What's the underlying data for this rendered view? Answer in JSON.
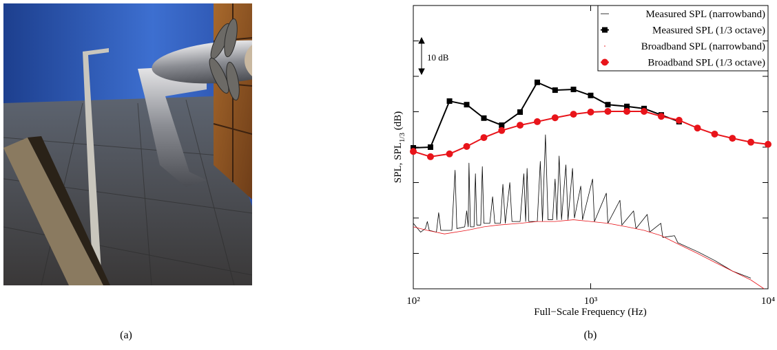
{
  "captions": [
    "(a)",
    "(b)"
  ],
  "chart_data": {
    "type": "line",
    "xlabel": "Full−Scale Frequency (Hz)",
    "ylabel": "SPL, SPL",
    "ylabel_sub": "1/3",
    "ylabel_suffix": " (dB)",
    "annotation": "10 dB",
    "log_x": true,
    "xlim": [
      100,
      10000
    ],
    "xticks": [
      {
        "value": 100,
        "label": "10²"
      },
      {
        "value": 1000,
        "label": "10³"
      },
      {
        "value": 10000,
        "label": "10⁴"
      }
    ],
    "ylim": [
      0,
      80
    ],
    "yticks": [
      10,
      20,
      30,
      40,
      50,
      60,
      70
    ],
    "show_ytick_labels": false,
    "grid": false,
    "legend": "upper right",
    "series": [
      {
        "name": "Measured SPL (narrowband)",
        "color": "#000000",
        "marker": "none",
        "line_width": 0.8,
        "x": [
          100,
          110,
          117,
          120,
          123,
          135,
          139,
          143,
          165,
          172,
          176,
          195,
          200,
          204,
          206,
          210,
          220,
          224,
          228,
          240,
          245,
          250,
          270,
          280,
          288,
          310,
          320,
          330,
          350,
          360,
          400,
          420,
          430,
          438,
          448,
          500,
          520,
          535,
          556,
          575,
          610,
          630,
          645,
          664,
          685,
          725,
          745,
          790,
          810,
          879,
          900,
          1025,
          1050,
          1225,
          1250,
          1462,
          1500,
          1745,
          1800,
          2083,
          2150,
          2487,
          2550,
          2968,
          3100,
          4000,
          5000,
          6300,
          8000
        ],
        "values": [
          18.5,
          16,
          17,
          19,
          16.5,
          16,
          21.5,
          16.5,
          16.5,
          33.5,
          17,
          17.5,
          22,
          17.5,
          35.5,
          17.5,
          17.5,
          32.5,
          18,
          18,
          34.5,
          18.5,
          18.5,
          26,
          18.5,
          18.5,
          29.5,
          18.5,
          30,
          19,
          19,
          32.5,
          19,
          34,
          19,
          19,
          36,
          19,
          43.5,
          19.5,
          19.5,
          31,
          19.5,
          37.5,
          19.5,
          35,
          19.5,
          34,
          20,
          29,
          19.5,
          31,
          19,
          27,
          18.5,
          25,
          18,
          22,
          17,
          21,
          16,
          18.5,
          14.5,
          15,
          13,
          10.5,
          8,
          5,
          3
        ]
      },
      {
        "name": "Measured SPL (1/3 octave)",
        "color": "#000000",
        "marker": "square",
        "line_width": 2,
        "x": [
          100,
          125,
          160,
          200,
          250,
          315,
          400,
          500,
          630,
          800,
          1000,
          1250,
          1600,
          2000,
          2500,
          3150
        ],
        "values": [
          39.8,
          40,
          53,
          52,
          48.2,
          46.2,
          49.9,
          58.3,
          56.1,
          56.3,
          54.6,
          52,
          51.5,
          50.9,
          49.1,
          47.2
        ]
      },
      {
        "name": "Broadband SPL (narrowband)",
        "color": "#e8141a",
        "marker": "dot",
        "line_width": 0.8,
        "x": [
          100,
          120,
          150,
          200,
          250,
          300,
          400,
          500,
          630,
          800,
          1000,
          1250,
          1600,
          2000,
          2500,
          3150,
          4000,
          5000,
          6300,
          8000,
          9500
        ],
        "values": [
          17.5,
          16.5,
          15.5,
          16.5,
          17.5,
          18,
          18.5,
          19,
          19,
          19.5,
          19,
          18.5,
          17.5,
          16.5,
          15,
          12.5,
          10,
          7.5,
          5,
          2.5,
          0
        ]
      },
      {
        "name": "Broadband SPL (1/3 octave)",
        "color": "#e8141a",
        "marker": "circle",
        "line_width": 2,
        "x": [
          100,
          125,
          160,
          200,
          250,
          315,
          400,
          500,
          630,
          800,
          1000,
          1250,
          1600,
          2000,
          2500,
          3150,
          4000,
          5000,
          6300,
          8000,
          10000
        ],
        "values": [
          38.8,
          37.3,
          38.1,
          40.2,
          42.7,
          44.7,
          46.2,
          47.2,
          48.3,
          49.3,
          49.9,
          50.1,
          50.1,
          50.1,
          48.7,
          47.6,
          45.4,
          43.7,
          42.5,
          41.4,
          40.8
        ]
      }
    ]
  }
}
